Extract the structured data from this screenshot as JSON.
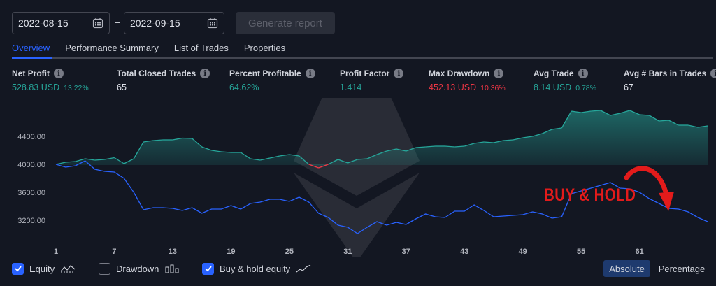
{
  "controls": {
    "start_date": "2022-08-15",
    "end_date": "2022-09-15",
    "separator": "–",
    "generate_label": "Generate report"
  },
  "tabs": [
    {
      "label": "Overview",
      "active": true
    },
    {
      "label": "Performance Summary",
      "active": false
    },
    {
      "label": "List of Trades",
      "active": false
    },
    {
      "label": "Properties",
      "active": false
    }
  ],
  "stats": [
    {
      "label": "Net Profit",
      "value": "528.83 USD",
      "sub": "13.22%",
      "tone": "pos"
    },
    {
      "label": "Total Closed Trades",
      "value": "65",
      "sub": "",
      "tone": "neu"
    },
    {
      "label": "Percent Profitable",
      "value": "64.62%",
      "sub": "",
      "tone": "pos"
    },
    {
      "label": "Profit Factor",
      "value": "1.414",
      "sub": "",
      "tone": "pos"
    },
    {
      "label": "Max Drawdown",
      "value": "452.13 USD",
      "sub": "10.36%",
      "tone": "neg"
    },
    {
      "label": "Avg Trade",
      "value": "8.14 USD",
      "sub": "0.78%",
      "tone": "pos"
    },
    {
      "label": "Avg # Bars in Trades",
      "value": "67",
      "sub": "",
      "tone": "neu"
    }
  ],
  "legend": {
    "equity": {
      "label": "Equity",
      "checked": true
    },
    "drawdown": {
      "label": "Drawdown",
      "checked": false
    },
    "buyhold": {
      "label": "Buy & hold equity",
      "checked": true
    }
  },
  "view_toggle": {
    "absolute": "Absolute",
    "percentage": "Percentage",
    "selected": "Absolute"
  },
  "annotation": "BUY & HOLD",
  "colors": {
    "equity_pos": "#26a69a",
    "equity_neg": "#f23645",
    "buyhold": "#2962ff",
    "annotation": "#e31b1b",
    "accent": "#2962ff"
  },
  "chart_data": {
    "type": "line",
    "baseline": 4000,
    "ylim": [
      2950,
      4950
    ],
    "yticks": [
      4400.0,
      4000.0,
      3600.0,
      3200.0
    ],
    "ytick_labels": [
      "4400.00",
      "4000.00",
      "3600.00",
      "3200.00"
    ],
    "xlim": [
      1,
      68
    ],
    "xticks": [
      1,
      7,
      13,
      19,
      25,
      31,
      37,
      43,
      49,
      55,
      61
    ],
    "xtick_labels": [
      "1",
      "7",
      "13",
      "19",
      "25",
      "31",
      "37",
      "43",
      "49",
      "55",
      "61"
    ],
    "x": [
      1,
      2,
      3,
      4,
      5,
      6,
      7,
      8,
      9,
      10,
      11,
      12,
      13,
      14,
      15,
      16,
      17,
      18,
      19,
      20,
      21,
      22,
      23,
      24,
      25,
      26,
      27,
      28,
      29,
      30,
      31,
      32,
      33,
      34,
      35,
      36,
      37,
      38,
      39,
      40,
      41,
      42,
      43,
      44,
      45,
      46,
      47,
      48,
      49,
      50,
      51,
      52,
      53,
      54,
      55,
      56,
      57,
      58,
      59,
      60,
      61,
      62,
      63,
      64,
      65,
      66,
      67,
      68
    ],
    "series": [
      {
        "values": [
          4000,
          4030,
          4040,
          4080,
          4060,
          4070,
          4095,
          4010,
          4080,
          4320,
          4340,
          4350,
          4350,
          4375,
          4370,
          4250,
          4200,
          4180,
          4170,
          4170,
          4080,
          4060,
          4090,
          4120,
          4140,
          4120,
          4000,
          3950,
          4000,
          4070,
          4020,
          4070,
          4080,
          4140,
          4190,
          4220,
          4190,
          4240,
          4250,
          4260,
          4260,
          4250,
          4260,
          4300,
          4320,
          4310,
          4340,
          4350,
          4380,
          4400,
          4440,
          4500,
          4520,
          4760,
          4740,
          4760,
          4770,
          4700,
          4730,
          4770,
          4710,
          4700,
          4620,
          4630,
          4560,
          4560,
          4530,
          4550
        ]
      },
      {
        "values": [
          4000,
          3960,
          3980,
          4050,
          3930,
          3900,
          3890,
          3800,
          3600,
          3350,
          3380,
          3380,
          3370,
          3340,
          3380,
          3300,
          3360,
          3360,
          3410,
          3360,
          3440,
          3460,
          3500,
          3500,
          3470,
          3530,
          3460,
          3300,
          3240,
          3130,
          3100,
          3010,
          3100,
          3180,
          3130,
          3170,
          3140,
          3220,
          3290,
          3250,
          3240,
          3330,
          3330,
          3420,
          3340,
          3250,
          3260,
          3270,
          3280,
          3320,
          3290,
          3230,
          3250,
          3580,
          3620,
          3660,
          3700,
          3740,
          3660,
          3650,
          3600,
          3510,
          3440,
          3370,
          3360,
          3320,
          3240,
          3180
        ]
      }
    ]
  }
}
